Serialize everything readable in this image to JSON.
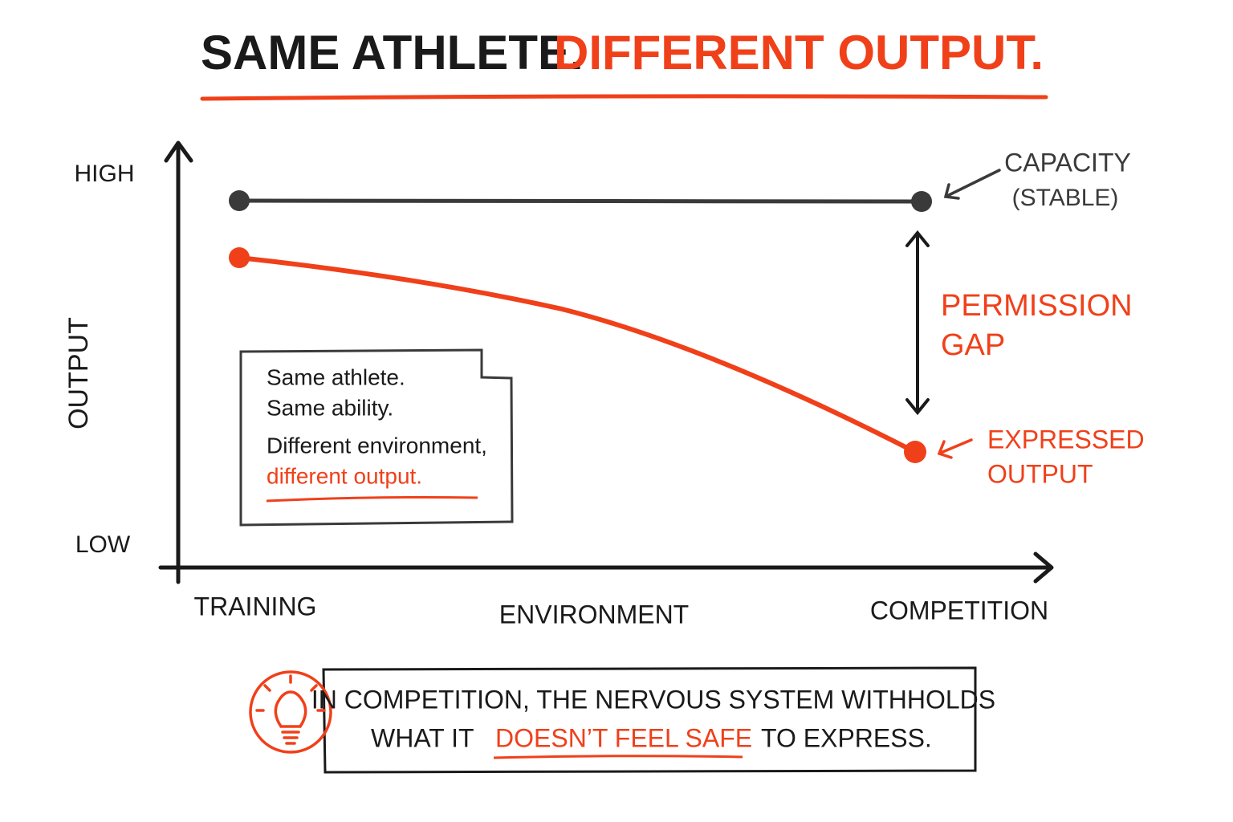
{
  "title": {
    "part1": "SAME ATHLETE.",
    "part2": "DIFFERENT OUTPUT."
  },
  "y_axis": {
    "label": "OUTPUT",
    "high": "HIGH",
    "low": "LOW"
  },
  "x_axis": {
    "label": "ENVIRONMENT",
    "start": "TRAINING",
    "end": "COMPETITION"
  },
  "capacity": {
    "line1": "CAPACITY",
    "line2": "(STABLE)"
  },
  "gap": {
    "line1": "PERMISSION",
    "line2": "GAP"
  },
  "expressed": {
    "line1": "EXPRESSED",
    "line2": "OUTPUT"
  },
  "note": {
    "lines": [
      "Same athlete.",
      "Same ability.",
      "Different environment,",
      "different output."
    ]
  },
  "footer": {
    "line1": "IN COMPETITION, THE NERVOUS SYSTEM WITHHOLDS",
    "line2a": "WHAT IT",
    "line2b": "DOESN’T FEEL SAFE",
    "line2c": "TO EXPRESS."
  }
}
